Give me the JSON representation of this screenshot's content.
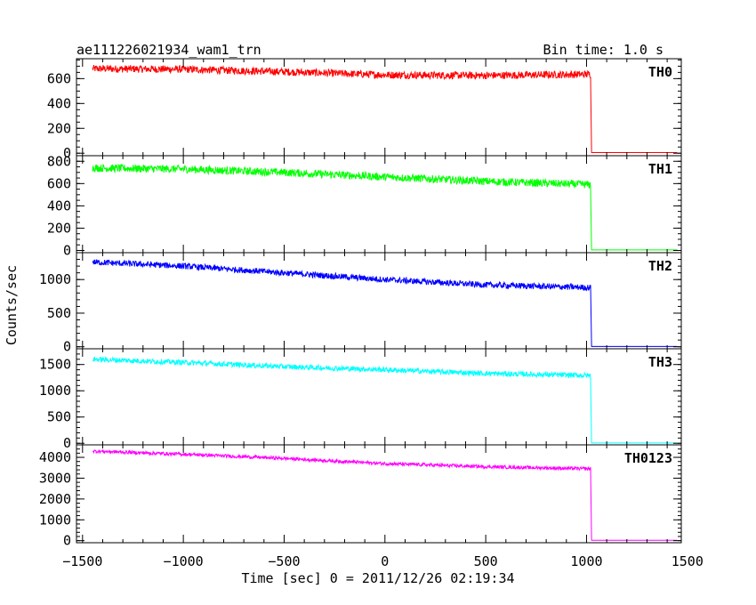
{
  "header": {
    "title": "ae111226021934_wam1_trn",
    "bin_time": "Bin time: 1.0 s"
  },
  "axes": {
    "xlabel": "Time [sec] 0 = 2011/12/26 02:19:34",
    "ylabel": "Counts/sec",
    "x_tick_labels": [
      "−1500",
      "−1000",
      "−500",
      "0",
      "500",
      "1000",
      "1500"
    ]
  },
  "chart_data": {
    "type": "line",
    "title": "ae111226021934_wam1_trn",
    "xlabel": "Time [sec] 0 = 2011/12/26 02:19:34",
    "ylabel": "Counts/sec",
    "xlim": [
      -1530,
      1470
    ],
    "x_ticks": [
      -1500,
      -1000,
      -500,
      0,
      500,
      1000,
      1500
    ],
    "bin_time_s": 1.0,
    "grid": false,
    "panels": [
      {
        "name": "TH0",
        "color": "#ff0000",
        "ylim": [
          -20,
          760
        ],
        "y_ticks": [
          0,
          200,
          400,
          600
        ],
        "y_tick_labels": [
          "0",
          "200",
          "400",
          "600"
        ],
        "x": [
          -1450,
          -1000,
          -500,
          0,
          500,
          1020,
          1025,
          1450
        ],
        "y": [
          680,
          675,
          655,
          630,
          625,
          635,
          5,
          5
        ],
        "noise": 30
      },
      {
        "name": "TH1",
        "color": "#00ff00",
        "ylim": [
          -20,
          850
        ],
        "y_ticks": [
          0,
          200,
          400,
          600,
          800
        ],
        "y_tick_labels": [
          "0",
          "200",
          "400",
          "600",
          "800"
        ],
        "x": [
          -1450,
          -1000,
          -500,
          0,
          500,
          1020,
          1025,
          1450
        ],
        "y": [
          740,
          730,
          700,
          660,
          620,
          590,
          5,
          5
        ],
        "noise": 35
      },
      {
        "name": "TH2",
        "color": "#0000ff",
        "ylim": [
          -30,
          1400
        ],
        "y_ticks": [
          0,
          500,
          1000
        ],
        "y_tick_labels": [
          "0",
          "500",
          "1000"
        ],
        "x": [
          -1450,
          -1000,
          -500,
          0,
          500,
          1020,
          1025,
          1450
        ],
        "y": [
          1260,
          1200,
          1100,
          1000,
          920,
          880,
          5,
          5
        ],
        "noise": 45
      },
      {
        "name": "TH3",
        "color": "#00ffff",
        "ylim": [
          -30,
          1800
        ],
        "y_ticks": [
          0,
          500,
          1000,
          1500
        ],
        "y_tick_labels": [
          "0",
          "500",
          "1000",
          "1500"
        ],
        "x": [
          -1450,
          -1000,
          -500,
          0,
          500,
          1020,
          1025,
          1450
        ],
        "y": [
          1600,
          1540,
          1460,
          1400,
          1330,
          1290,
          5,
          5
        ],
        "noise": 50
      },
      {
        "name": "TH0123",
        "color": "#ff00ff",
        "ylim": [
          -100,
          4600
        ],
        "y_ticks": [
          0,
          1000,
          2000,
          3000,
          4000
        ],
        "y_tick_labels": [
          "0",
          "1000",
          "2000",
          "3000",
          "4000"
        ],
        "x": [
          -1450,
          -1000,
          -500,
          0,
          500,
          1020,
          1025,
          1450
        ],
        "y": [
          4300,
          4150,
          3950,
          3700,
          3550,
          3450,
          20,
          20
        ],
        "noise": 80
      }
    ]
  }
}
